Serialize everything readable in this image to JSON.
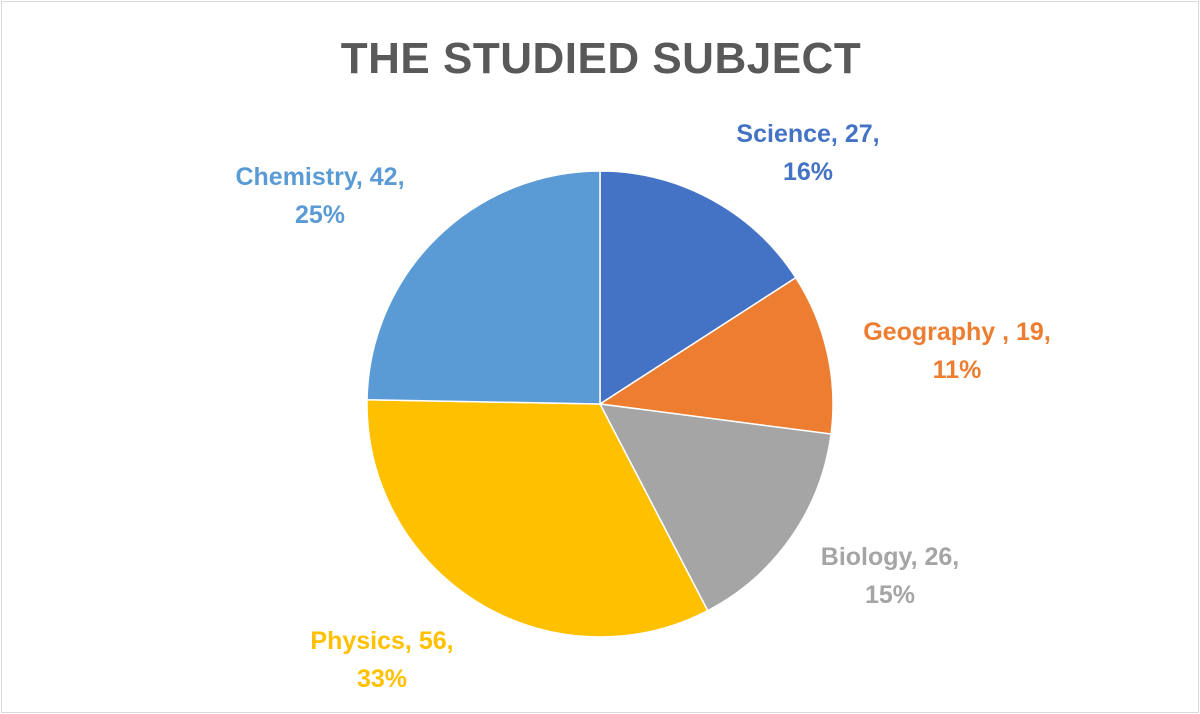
{
  "chart_data": {
    "type": "pie",
    "title": "THE STUDIED SUBJECT",
    "slices": [
      {
        "name": "Science",
        "value": 27,
        "percent": "16%",
        "color": "#4472c4"
      },
      {
        "name": "Geography ",
        "value": 19,
        "percent": "11%",
        "color": "#ed7d31"
      },
      {
        "name": "Biology",
        "value": 26,
        "percent": "15%",
        "color": "#a5a5a5"
      },
      {
        "name": "Physics",
        "value": 56,
        "percent": "33%",
        "color": "#ffc000"
      },
      {
        "name": "Chemistry",
        "value": 42,
        "percent": "25%",
        "color": "#5b9bd5"
      }
    ],
    "legend": "none",
    "start_angle": "12 o'clock, clockwise"
  }
}
